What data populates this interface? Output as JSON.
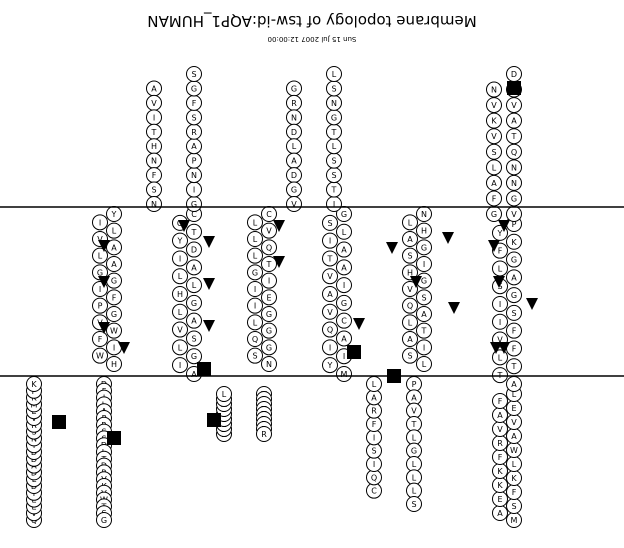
{
  "title": "Membrane topology of tsw-id:AQP1_HUMAN",
  "timestamp": "Sun 15 Jul 2007 12:00:00",
  "diagram": {
    "orientation": "rotated 180 degrees",
    "membrane_lines": 2,
    "strands": [
      {
        "name": "n-terminus",
        "residues": [
          "M",
          "A",
          "S",
          "E",
          "F",
          "K",
          "K",
          "K",
          "L",
          "F",
          "W",
          "R",
          "A",
          "V",
          "V",
          "A",
          "E",
          "F",
          "L"
        ]
      },
      {
        "name": "tm1",
        "residues": [
          "A",
          "T",
          "T",
          "L",
          "F",
          "V",
          "F",
          "I",
          "S",
          "I",
          "G",
          "S",
          "A",
          "L",
          "G",
          "F",
          "K",
          "Y",
          "P"
        ]
      },
      {
        "name": "loop-b",
        "residues": [
          "V",
          "G",
          "N",
          "N",
          "Q",
          "T",
          "A",
          "V",
          "Q",
          "D",
          "N",
          "V",
          "K",
          "V",
          "S",
          "L",
          "A",
          "F",
          "G"
        ]
      },
      {
        "name": "tm2",
        "residues": [
          "L",
          "S",
          "I",
          "A",
          "T",
          "L",
          "A",
          "Q",
          "S",
          "V",
          "G",
          "H",
          "I",
          "S",
          "G",
          "A",
          "H",
          "L",
          "N"
        ]
      },
      {
        "name": "loop-c",
        "residues": [
          "P",
          "A",
          "V",
          "T",
          "L",
          "G",
          "L",
          "L",
          "L",
          "S",
          "C",
          "Q",
          "I",
          "S",
          "I",
          "F",
          "R",
          "A",
          "L"
        ]
      },
      {
        "name": "tm3",
        "residues": [
          "M",
          "Y",
          "I",
          "I",
          "A",
          "Q",
          "C",
          "V",
          "G",
          "A",
          "I",
          "V",
          "A",
          "T",
          "A",
          "I",
          "L",
          "S",
          "G"
        ]
      },
      {
        "name": "loop-d",
        "residues": [
          "I",
          "T",
          "S",
          "S",
          "L",
          "T",
          "G",
          "N",
          "S",
          "L",
          "G",
          "R",
          "N",
          "D",
          "L",
          "A",
          "D",
          "G",
          "V"
        ]
      },
      {
        "name": "tm4",
        "residues": [
          "N",
          "S",
          "G",
          "Q",
          "G",
          "L",
          "G",
          "I",
          "E",
          "I",
          "I",
          "G",
          "T",
          "L",
          "Q",
          "L",
          "V",
          "L",
          "C"
        ]
      },
      {
        "name": "loop-e",
        "residues": [
          "V",
          "L",
          "A",
          "T",
          "T",
          "D",
          "R",
          "R",
          "R",
          "R",
          "D",
          "L",
          "G",
          "G",
          "S",
          "A",
          "P",
          "L"
        ]
      },
      {
        "name": "tm5",
        "residues": [
          "A",
          "I",
          "G",
          "L",
          "S",
          "V",
          "A",
          "L",
          "G",
          "H",
          "L",
          "L",
          "A",
          "I",
          "D",
          "Y",
          "T",
          "G",
          "C"
        ]
      },
      {
        "name": "loop-e2",
        "residues": [
          "G",
          "I",
          "N",
          "P",
          "A",
          "R",
          "S",
          "F",
          "G",
          "S",
          "A",
          "V",
          "I",
          "T",
          "H",
          "N",
          "F",
          "S",
          "N"
        ]
      },
      {
        "name": "tm6",
        "residues": [
          "H",
          "W",
          "I",
          "F",
          "W",
          "V",
          "G",
          "P",
          "F",
          "I",
          "G",
          "G",
          "A",
          "L",
          "A",
          "V",
          "L",
          "I",
          "Y"
        ]
      },
      {
        "name": "c-terminus",
        "residues": [
          "D",
          "F",
          "I",
          "L",
          "A",
          "P",
          "R",
          "S",
          "S",
          "D",
          "L",
          "T",
          "D",
          "R",
          "V",
          "K",
          "V",
          "W",
          "T",
          "S",
          "G",
          "Q",
          "V",
          "E",
          "E",
          "Y",
          "D",
          "L",
          "D",
          "A",
          "D",
          "D",
          "I",
          "N",
          "S",
          "R",
          "V",
          "E",
          "M",
          "K",
          "P",
          "K"
        ]
      }
    ]
  }
}
